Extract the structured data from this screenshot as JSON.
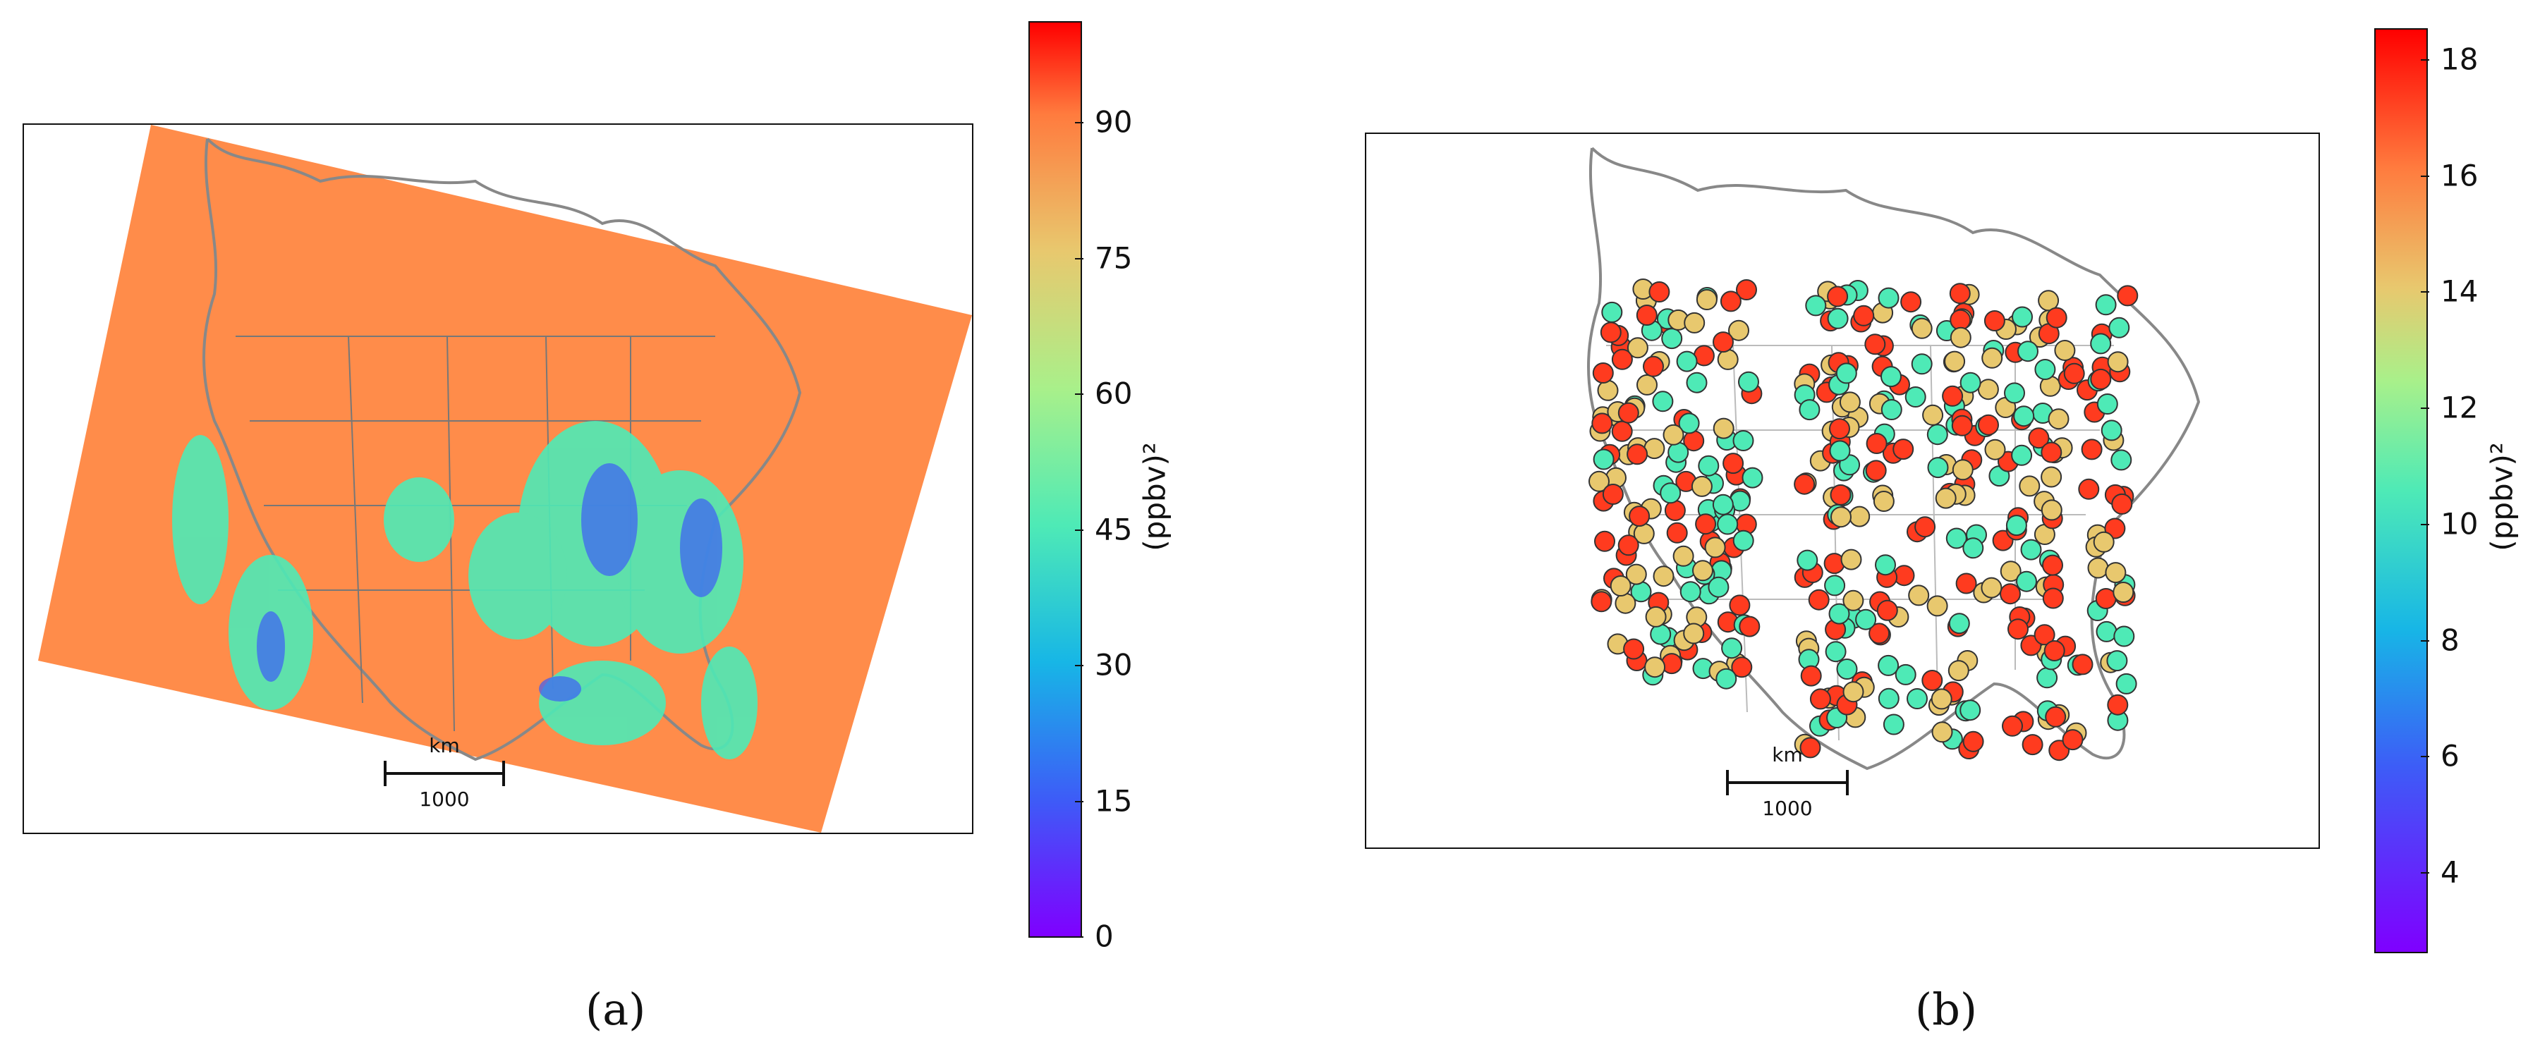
{
  "panel_a": {
    "label": "(a)",
    "scale_bar": {
      "unit": "km",
      "value": "1000"
    },
    "colorbar": {
      "unit_label": "(ppbv)²",
      "ticks": [
        "0",
        "15",
        "30",
        "45",
        "60",
        "75",
        "90"
      ]
    },
    "colors": {
      "background": "#ff8c4a",
      "stations": "#4eeab6",
      "ocean": "#ffffff",
      "coast": "#888888"
    }
  },
  "panel_b": {
    "label": "(b)",
    "scale_bar": {
      "unit": "km",
      "value": "1000"
    },
    "colorbar": {
      "unit_label": "(ppbv)²",
      "ticks": [
        "4",
        "6",
        "8",
        "10",
        "12",
        "14",
        "16",
        "18"
      ]
    },
    "colors": {
      "high": "#ff3b1f",
      "mid": "#e8c86e",
      "low": "#4eeab6",
      "coast": "#888888"
    }
  }
}
